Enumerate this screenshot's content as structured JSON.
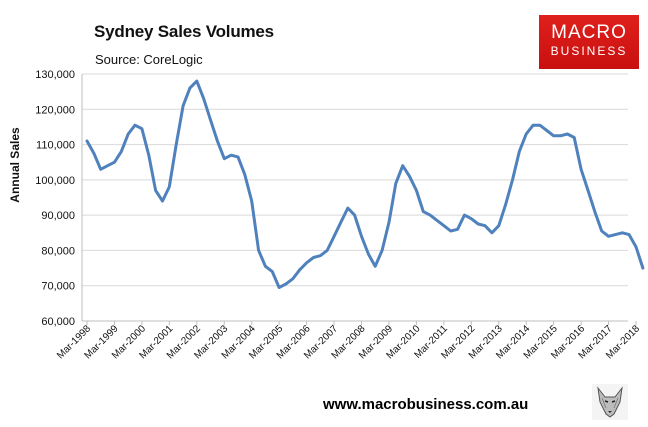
{
  "header": {
    "title": "Sydney Sales Volumes",
    "subtitle": "Source: CoreLogic"
  },
  "logo": {
    "line1": "MACRO",
    "line2": "BUSINESS"
  },
  "footer": {
    "url": "www.macrobusiness.com.au"
  },
  "colors": {
    "line": "#4f81bd",
    "logo": "#d8181a",
    "grid": "#d9d9d9"
  },
  "chart_data": {
    "type": "line",
    "title": "Sydney Sales Volumes",
    "subtitle": "Source: CoreLogic",
    "ylabel": "Annual Sales",
    "xlabel": "",
    "ylim": [
      60000,
      130000
    ],
    "y_ticks": [
      60000,
      70000,
      80000,
      90000,
      100000,
      110000,
      120000,
      130000
    ],
    "y_tick_labels": [
      "60,000",
      "70,000",
      "80,000",
      "90,000",
      "100,000",
      "110,000",
      "120,000",
      "130,000"
    ],
    "x_range": [
      "Mar-1998",
      "Jun-2018"
    ],
    "x_tick_labels": [
      "Mar-1998",
      "Mar-1999",
      "Mar-2000",
      "Mar-2001",
      "Mar-2002",
      "Mar-2003",
      "Mar-2004",
      "Mar-2005",
      "Mar-2006",
      "Mar-2007",
      "Mar-2008",
      "Mar-2009",
      "Mar-2010",
      "Mar-2011",
      "Mar-2012",
      "Mar-2013",
      "Mar-2014",
      "Mar-2015",
      "Mar-2016",
      "Mar-2017",
      "Mar-2018"
    ],
    "grid": true,
    "legend": "none",
    "series": [
      {
        "x": [
          "Mar-1998",
          "Jun-1998",
          "Sep-1998",
          "Dec-1998",
          "Mar-1999",
          "Jun-1999",
          "Sep-1999",
          "Dec-1999",
          "Mar-2000",
          "Jun-2000",
          "Sep-2000",
          "Dec-2000",
          "Mar-2001",
          "Jun-2001",
          "Sep-2001",
          "Dec-2001",
          "Mar-2002",
          "Jun-2002",
          "Sep-2002",
          "Dec-2002",
          "Mar-2003",
          "Jun-2003",
          "Sep-2003",
          "Dec-2003",
          "Mar-2004",
          "Jun-2004",
          "Sep-2004",
          "Dec-2004",
          "Mar-2005",
          "Jun-2005",
          "Sep-2005",
          "Dec-2005",
          "Mar-2006",
          "Jun-2006",
          "Sep-2006",
          "Dec-2006",
          "Mar-2007",
          "Jun-2007",
          "Sep-2007",
          "Dec-2007",
          "Mar-2008",
          "Jun-2008",
          "Sep-2008",
          "Dec-2008",
          "Mar-2009",
          "Jun-2009",
          "Sep-2009",
          "Dec-2009",
          "Mar-2010",
          "Jun-2010",
          "Sep-2010",
          "Dec-2010",
          "Mar-2011",
          "Jun-2011",
          "Sep-2011",
          "Dec-2011",
          "Mar-2012",
          "Jun-2012",
          "Sep-2012",
          "Dec-2012",
          "Mar-2013",
          "Jun-2013",
          "Sep-2013",
          "Dec-2013",
          "Mar-2014",
          "Jun-2014",
          "Sep-2014",
          "Dec-2014",
          "Mar-2015",
          "Jun-2015",
          "Sep-2015",
          "Dec-2015",
          "Mar-2016",
          "Jun-2016",
          "Sep-2016",
          "Dec-2016",
          "Mar-2017",
          "Jun-2017",
          "Sep-2017",
          "Dec-2017",
          "Mar-2018",
          "Jun-2018"
        ],
        "values": [
          111000,
          107500,
          103000,
          104000,
          105000,
          108000,
          113000,
          115500,
          114500,
          107000,
          97000,
          94000,
          98000,
          110000,
          121000,
          126000,
          128000,
          123000,
          117000,
          111000,
          106000,
          107000,
          106500,
          101500,
          94000,
          80000,
          75500,
          74000,
          69500,
          70500,
          72000,
          74500,
          76500,
          78000,
          78500,
          80000,
          84000,
          88000,
          92000,
          90000,
          84000,
          79000,
          75500,
          80000,
          88000,
          99000,
          104000,
          101000,
          97000,
          91000,
          90000,
          88500,
          87000,
          85500,
          86000,
          90000,
          89000,
          87500,
          87000,
          85000,
          87000,
          93000,
          100000,
          108000,
          113000,
          115500,
          115500,
          114000,
          112500,
          112500,
          113000,
          112000,
          103000,
          97000,
          91000,
          85500,
          84000,
          84500,
          85000,
          84500,
          81000,
          75000
        ]
      }
    ]
  }
}
